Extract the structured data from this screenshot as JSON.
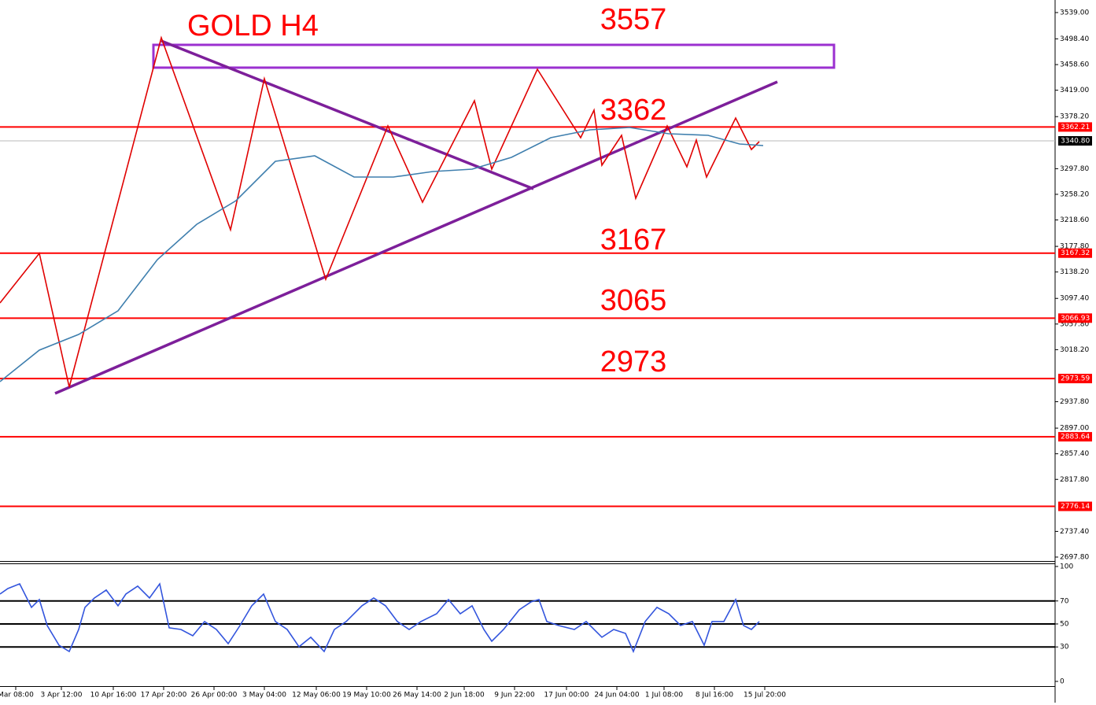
{
  "chart_data": [
    {
      "type": "line",
      "title": "GOLD H4",
      "annotations": [
        "3557",
        "3362",
        "3167",
        "3065",
        "2973"
      ],
      "xlim": [
        0,
        670.5
      ],
      "xticks": [
        {
          "value": 10,
          "label": "Mar 08:00"
        },
        {
          "value": 39,
          "label": "3 Apr 12:00"
        },
        {
          "value": 72,
          "label": "10 Apr 16:00"
        },
        {
          "value": 104,
          "label": "17 Apr 20:00"
        },
        {
          "value": 136,
          "label": "26 Apr 00:00"
        },
        {
          "value": 168,
          "label": "3 May 04:00"
        },
        {
          "value": 201,
          "label": "12 May 06:00"
        },
        {
          "value": 233,
          "label": "19 May 10:00"
        },
        {
          "value": 265,
          "label": "26 May 14:00"
        },
        {
          "value": 295,
          "label": "2 Jun 18:00"
        },
        {
          "value": 327,
          "label": "9 Jun 22:00"
        },
        {
          "value": 360,
          "label": "17 Jun 00:00"
        },
        {
          "value": 392,
          "label": "24 Jun 04:00"
        },
        {
          "value": 422,
          "label": "1 Jul 08:00"
        },
        {
          "value": 454,
          "label": "8 Jul 16:00"
        },
        {
          "value": 486,
          "label": "15 Jul 20:00"
        }
      ],
      "ylim": [
        2691.7,
        3558.4
      ],
      "yticks": [
        {
          "value": 3539,
          "label": "3539.00"
        },
        {
          "value": 3498.4,
          "label": "3498.40"
        },
        {
          "value": 3458.6,
          "label": "3458.60"
        },
        {
          "value": 3419,
          "label": "3419.00"
        },
        {
          "value": 3378.2,
          "label": "3378.20"
        },
        {
          "value": 3297.8,
          "label": "3297.80"
        },
        {
          "value": 3258.2,
          "label": "3258.20"
        },
        {
          "value": 3218.6,
          "label": "3218.60"
        },
        {
          "value": 3177.8,
          "label": "3177.80"
        },
        {
          "value": 3138.2,
          "label": "3138.20"
        },
        {
          "value": 3097.4,
          "label": "3097.40"
        },
        {
          "value": 3057.8,
          "label": "3057.80"
        },
        {
          "value": 3018.2,
          "label": "3018.20"
        },
        {
          "value": 2937.8,
          "label": "2937.80"
        },
        {
          "value": 2897,
          "label": "2897.00"
        },
        {
          "value": 2857.4,
          "label": "2857.40"
        },
        {
          "value": 2817.8,
          "label": "2817.80"
        },
        {
          "value": 2737.4,
          "label": "2737.40"
        },
        {
          "value": 2697.8,
          "label": "2697.80"
        }
      ],
      "series": [
        {
          "color": "#e00000",
          "x": [
            0,
            25,
            44,
            102.5,
            146.5,
            168,
            207,
            246.5,
            268.5,
            301.5,
            312.5,
            341.5,
            369,
            377.5,
            382.5,
            395,
            404,
            424,
            436.5,
            442.5,
            449,
            467.5,
            477.5,
            482.5
          ],
          "values": [
            3090.4,
            3167.0,
            2960.3,
            3500.0,
            3203.4,
            3436.8,
            3126.9,
            3363.9,
            3246.0,
            3402.8,
            3297.0,
            3451.4,
            3345.7,
            3388.2,
            3303.1,
            3349.3,
            3252.1,
            3363.9,
            3300.7,
            3342.0,
            3284.9,
            3376.1,
            3327.4,
            3339.6
          ]
        },
        {
          "color": "#3f7fae",
          "x": [
            0,
            25,
            50,
            75,
            100,
            125,
            150,
            175,
            200,
            225,
            250,
            275,
            300,
            325,
            350,
            375,
            400,
            425,
            450,
            470,
            485
          ],
          "values": [
            2968.8,
            3017.5,
            3041.8,
            3078.3,
            3157.3,
            3211.9,
            3248.4,
            3309.2,
            3317.7,
            3284.9,
            3284.9,
            3293.4,
            3297.0,
            3315.3,
            3345.7,
            3357.8,
            3361.5,
            3351.8,
            3349.3,
            3335.9,
            3333.5
          ]
        }
      ],
      "levels": [
        3362.21,
        3167.32,
        3066.93,
        2973.59,
        2883.64,
        2776.14
      ],
      "level_color": "#ff0000",
      "current_price": {
        "value": 3340.8,
        "label": "3340.80"
      },
      "trendlines": [
        {
          "x": [
            35,
            494
          ],
          "values": [
            2950.6,
            3432.0
          ]
        },
        {
          "x": [
            102.5,
            339
          ],
          "values": [
            3495.2,
            3266.6
          ]
        }
      ],
      "trendline_color": "#7d1f9a",
      "zones": [
        {
          "x": [
            97.5,
            530
          ],
          "values": [
            3489.1,
            3453.9
          ]
        }
      ],
      "zone_color": "#9b30d0"
    },
    {
      "type": "line",
      "xlim": [
        0,
        670.5
      ],
      "ylim": [
        -4.1,
        102.7
      ],
      "yticks": [
        100,
        70,
        50,
        30,
        0
      ],
      "levels": [
        70,
        50,
        30
      ],
      "series": [
        {
          "color": "#3355dd",
          "x": [
            0,
            5,
            12.5,
            20,
            25,
            30,
            37.5,
            44,
            50,
            54,
            60,
            67.5,
            75,
            80,
            87.5,
            95,
            101.5,
            107.5,
            115,
            122.5,
            130,
            137.5,
            145,
            152.5,
            160,
            167.5,
            175,
            182.5,
            190,
            197.5,
            206,
            212.5,
            220,
            230,
            237.5,
            245,
            252.5,
            260,
            267.5,
            277.5,
            285,
            292.5,
            300,
            307.5,
            312.5,
            320,
            330,
            337.5,
            342.5,
            347.5,
            355,
            365,
            372.5,
            382.5,
            390,
            397.5,
            402.5,
            410,
            417.5,
            425,
            432.5,
            440,
            447.5,
            452.5,
            460,
            467.5,
            472.5,
            477.5,
            482.5
          ],
          "values": [
            76.0,
            80.8,
            84.9,
            64.4,
            71.2,
            48.6,
            31.5,
            26.0,
            45.2,
            64.4,
            72.6,
            79.5,
            65.8,
            76.0,
            82.9,
            72.6,
            84.9,
            46.6,
            45.2,
            39.7,
            52.1,
            45.2,
            32.9,
            48.6,
            65.8,
            76.0,
            52.1,
            45.2,
            30.1,
            38.4,
            26.0,
            45.2,
            52.1,
            65.8,
            72.6,
            65.8,
            52.1,
            45.2,
            52.1,
            58.9,
            71.2,
            58.9,
            65.8,
            45.2,
            34.9,
            45.2,
            62.3,
            69.2,
            71.2,
            52.1,
            48.6,
            45.2,
            52.1,
            38.4,
            45.2,
            41.8,
            26.0,
            52.1,
            64.4,
            58.9,
            48.6,
            52.1,
            31.5,
            52.1,
            52.1,
            71.2,
            48.6,
            45.2,
            52.1
          ]
        }
      ]
    }
  ]
}
